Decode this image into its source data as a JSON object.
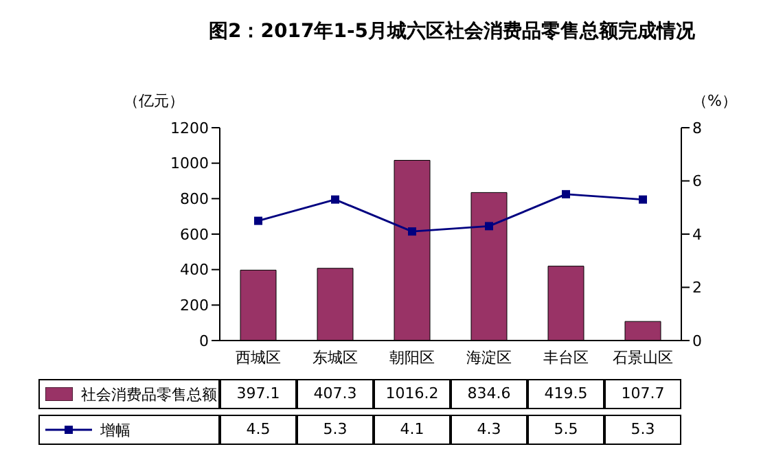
{
  "chart_data": {
    "type": "bar",
    "title": "图2：2017年1-5月城六区社会消费品零售总额完成情况",
    "ylabel": "（亿元）",
    "y2label": "（%）",
    "categories": [
      "西城区",
      "东城区",
      "朝阳区",
      "海淀区",
      "丰台区",
      "石景山区"
    ],
    "series": [
      {
        "name": "社会消费品零售总额",
        "color": "#993366",
        "values": [
          397.1,
          407.3,
          1016.2,
          834.6,
          419.5,
          107.7
        ]
      },
      {
        "name": "增幅",
        "type": "line",
        "axis": "y2",
        "color": "#000080",
        "marker": "square",
        "values": [
          4.5,
          5.3,
          4.1,
          4.3,
          5.5,
          5.3
        ]
      }
    ],
    "ylim": [
      0,
      1200
    ],
    "yticks": [
      0,
      200,
      400,
      600,
      800,
      1000,
      1200
    ],
    "y2lim": [
      0,
      8
    ],
    "y2ticks": [
      0,
      2,
      4,
      6,
      8
    ],
    "data_labels": true,
    "legend": "bottom",
    "grid": false
  }
}
